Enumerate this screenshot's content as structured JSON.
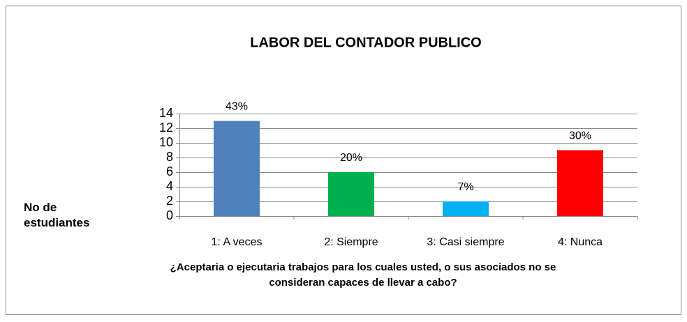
{
  "chart_data": {
    "type": "bar",
    "title": "LABOR DEL CONTADOR PUBLICO",
    "x_label": "¿Aceptaria o ejecutaria trabajos para los cuales usted, o sus asociados no se consideran capaces de llevar a cabo?",
    "y_label": "No de estudiantes",
    "categories": [
      "1: A veces",
      "2: Siempre",
      "3: Casi siempre",
      "4:  Nunca"
    ],
    "values": [
      13,
      6,
      2,
      9
    ],
    "value_labels": [
      "43%",
      "20%",
      "7%",
      "30%"
    ],
    "colors": [
      "#4f81bd",
      "#00b050",
      "#00b0f0",
      "#ff0000"
    ],
    "ylim": [
      0,
      14
    ],
    "yticks": [
      0,
      2,
      4,
      6,
      8,
      10,
      12,
      14
    ],
    "grid": true
  }
}
